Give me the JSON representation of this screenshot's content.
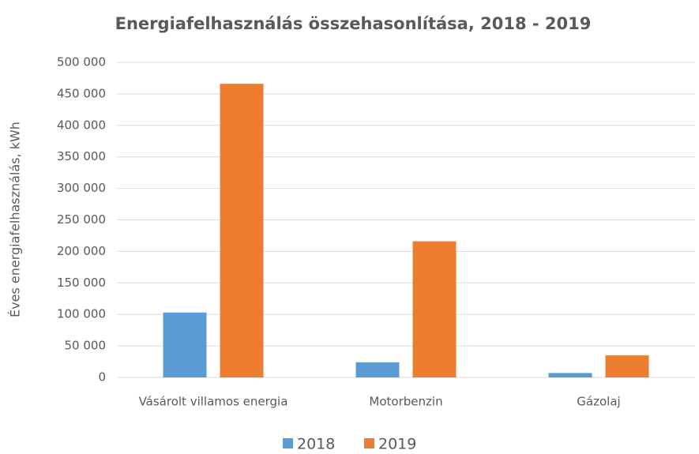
{
  "chart_data": {
    "type": "bar",
    "title": "Energiafelhasználás összehasonlítása, 2018 - 2019",
    "y_label": "Éves energiafelhasználás, kWh",
    "categories": [
      "Vásárolt villamos energia",
      "Motorbenzin",
      "Gázolaj"
    ],
    "series": [
      {
        "name": "2018",
        "color": "#5b9bd5",
        "values": [
          103000,
          24000,
          7000
        ]
      },
      {
        "name": "2019",
        "color": "#ed7d31",
        "values": [
          466000,
          216000,
          35000
        ]
      }
    ],
    "ylim": [
      0,
      500000
    ],
    "yticks": [
      0,
      {
        "value": 50000,
        "label": "50 000"
      },
      {
        "value": 100000,
        "label": "100 000"
      },
      {
        "value": 150000,
        "label": "150 000"
      },
      {
        "value": 200000,
        "label": "200 000"
      },
      {
        "value": 250000,
        "label": "250 000"
      },
      {
        "value": 300000,
        "label": "300 000"
      },
      {
        "value": 350000,
        "label": "350 000"
      },
      {
        "value": 400000,
        "label": "400 000"
      },
      {
        "value": 450000,
        "label": "450 000"
      },
      {
        "value": 500000,
        "label": "500 000"
      }
    ],
    "grid": true,
    "legend": "bottom"
  }
}
